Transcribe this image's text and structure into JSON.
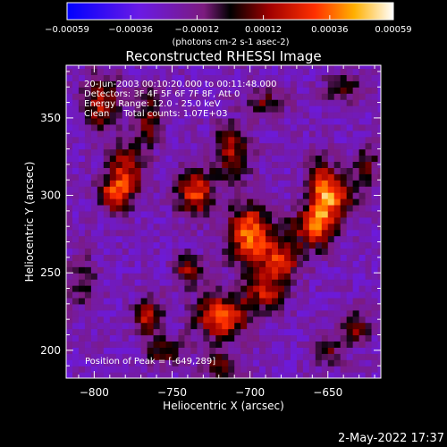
{
  "chart_data": {
    "type": "heatmap",
    "title": "Reconstructed RHESSI Image",
    "xlabel": "Heliocentric X (arcsec)",
    "ylabel": "Heliocentric Y (arcsec)",
    "xlim": [
      -818,
      -616
    ],
    "ylim": [
      182,
      384
    ],
    "x_ticks": [
      -800,
      -750,
      -700,
      -650
    ],
    "y_ticks": [
      200,
      250,
      300,
      350
    ],
    "colorbar": {
      "range": [
        -0.00059,
        0.00059
      ],
      "ticks": [
        "-0.00059",
        "-0.00036",
        "-0.00012",
        "0.00012",
        "0.00036",
        "0.00059"
      ],
      "unit_label": "(photons cm-2 s-1 asec-2)"
    },
    "info_lines": [
      "20-Jun-2003 00:10:20.000 to 00:11:48.000",
      "Detectors: 3F 4F 5F 6F 7F 8F, Att 0",
      "Energy Range: 12.0 - 25.0 keV",
      "Clean     Total counts: 1.07E+03"
    ],
    "peak_label": "Position of Peak = [-649,289]",
    "sources": [
      {
        "x": -700,
        "y": 275,
        "amp": 0.00058,
        "sx": 10,
        "sy": 14
      },
      {
        "x": -680,
        "y": 258,
        "amp": 0.00045,
        "sx": 9,
        "sy": 9
      },
      {
        "x": -660,
        "y": 280,
        "amp": 0.0004,
        "sx": 10,
        "sy": 9
      },
      {
        "x": -645,
        "y": 300,
        "amp": 0.00048,
        "sx": 8,
        "sy": 10
      },
      {
        "x": -655,
        "y": 300,
        "amp": 0.00038,
        "sx": 6,
        "sy": 18
      },
      {
        "x": -718,
        "y": 222,
        "amp": 0.00054,
        "sx": 12,
        "sy": 10
      },
      {
        "x": -690,
        "y": 238,
        "amp": 0.0004,
        "sx": 9,
        "sy": 8
      },
      {
        "x": -735,
        "y": 302,
        "amp": 0.0005,
        "sx": 8,
        "sy": 10
      },
      {
        "x": -712,
        "y": 328,
        "amp": 0.00038,
        "sx": 8,
        "sy": 12
      },
      {
        "x": -780,
        "y": 315,
        "amp": 0.00045,
        "sx": 8,
        "sy": 12
      },
      {
        "x": -788,
        "y": 300,
        "amp": 0.0004,
        "sx": 7,
        "sy": 7
      },
      {
        "x": -795,
        "y": 360,
        "amp": 0.0004,
        "sx": 8,
        "sy": 12
      },
      {
        "x": -765,
        "y": 350,
        "amp": 0.00034,
        "sx": 6,
        "sy": 12
      },
      {
        "x": -765,
        "y": 222,
        "amp": 0.00045,
        "sx": 6,
        "sy": 8
      },
      {
        "x": -755,
        "y": 200,
        "amp": 0.0003,
        "sx": 8,
        "sy": 6
      },
      {
        "x": -740,
        "y": 252,
        "amp": 0.00034,
        "sx": 6,
        "sy": 7
      },
      {
        "x": -632,
        "y": 215,
        "amp": 0.0003,
        "sx": 6,
        "sy": 8
      },
      {
        "x": -650,
        "y": 200,
        "amp": 0.00024,
        "sx": 7,
        "sy": 7
      },
      {
        "x": -718,
        "y": 190,
        "amp": 0.0003,
        "sx": 8,
        "sy": 6
      },
      {
        "x": -625,
        "y": 320,
        "amp": 0.00025,
        "sx": 6,
        "sy": 10
      },
      {
        "x": -640,
        "y": 370,
        "amp": 0.00024,
        "sx": 9,
        "sy": 7
      },
      {
        "x": -690,
        "y": 360,
        "amp": 0.00026,
        "sx": 9,
        "sy": 6
      },
      {
        "x": -808,
        "y": 245,
        "amp": 0.0002,
        "sx": 7,
        "sy": 12
      }
    ]
  },
  "footer": {
    "timestamp": "2-May-2022 17:37"
  }
}
